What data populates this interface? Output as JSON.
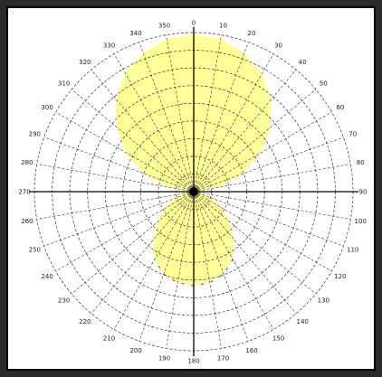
{
  "colors": {
    "frame": "#2a2a2a",
    "background": "#ffffff",
    "pattern_fill": "#ffff99",
    "pattern_edge": "#3344cc",
    "grid": "#333333",
    "axis": "#000000"
  },
  "chart_data": {
    "type": "polar",
    "title": "",
    "radial_rings": 9,
    "angular_step_deg": 10,
    "angle_labels": [
      {
        "angle": 0,
        "text": "0"
      },
      {
        "angle": 10,
        "text": "10"
      },
      {
        "angle": 20,
        "text": "20"
      },
      {
        "angle": 30,
        "text": "30"
      },
      {
        "angle": 40,
        "text": "40"
      },
      {
        "angle": 50,
        "text": "50"
      },
      {
        "angle": 60,
        "text": "60"
      },
      {
        "angle": 70,
        "text": "70"
      },
      {
        "angle": 80,
        "text": "80"
      },
      {
        "angle": 90,
        "text": "90"
      },
      {
        "angle": 100,
        "text": "100"
      },
      {
        "angle": 110,
        "text": "110"
      },
      {
        "angle": 120,
        "text": "120"
      },
      {
        "angle": 130,
        "text": "130"
      },
      {
        "angle": 140,
        "text": "140"
      },
      {
        "angle": 150,
        "text": "150"
      },
      {
        "angle": 160,
        "text": "160"
      },
      {
        "angle": 170,
        "text": "170"
      },
      {
        "angle": 180,
        "text": "180"
      },
      {
        "angle": 190,
        "text": "190"
      },
      {
        "angle": 200,
        "text": "200"
      },
      {
        "angle": 210,
        "text": "210"
      },
      {
        "angle": 220,
        "text": "220"
      },
      {
        "angle": 230,
        "text": "230"
      },
      {
        "angle": 240,
        "text": "240"
      },
      {
        "angle": 250,
        "text": "250"
      },
      {
        "angle": 260,
        "text": "260"
      },
      {
        "angle": 270,
        "text": "270"
      },
      {
        "angle": 280,
        "text": "280"
      },
      {
        "angle": 290,
        "text": "290"
      },
      {
        "angle": 300,
        "text": "300"
      },
      {
        "angle": 310,
        "text": "310"
      },
      {
        "angle": 320,
        "text": "320"
      },
      {
        "angle": 330,
        "text": "330"
      },
      {
        "angle": 340,
        "text": "340"
      },
      {
        "angle": 350,
        "text": "350"
      }
    ],
    "series": [
      {
        "type": "polar-area",
        "theta_deg": [
          0,
          10,
          20,
          30,
          40,
          50,
          60,
          70,
          80,
          90,
          100,
          110,
          120,
          130,
          140,
          150,
          160,
          170,
          180,
          190,
          200,
          210,
          220,
          230,
          240,
          250,
          260,
          270,
          280,
          290,
          300,
          310,
          320,
          330,
          340,
          350
        ],
        "r": [
          1.0,
          0.985,
          0.94,
          0.87,
          0.77,
          0.64,
          0.5,
          0.34,
          0.17,
          0.02,
          0.06,
          0.12,
          0.2,
          0.3,
          0.4,
          0.5,
          0.56,
          0.59,
          0.6,
          0.59,
          0.56,
          0.5,
          0.4,
          0.3,
          0.2,
          0.12,
          0.06,
          0.02,
          0.17,
          0.34,
          0.5,
          0.64,
          0.77,
          0.87,
          0.94,
          0.985
        ]
      }
    ]
  }
}
